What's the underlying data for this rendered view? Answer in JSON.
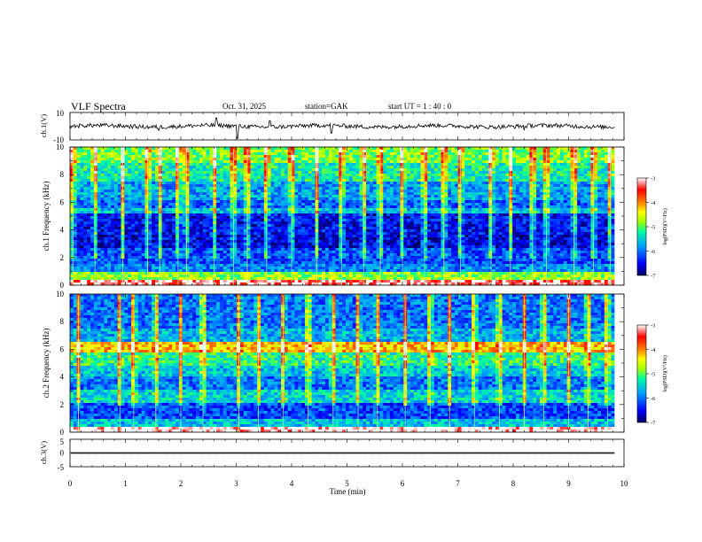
{
  "header": {
    "title": "VLF  Spectra",
    "date": "Oct. 31, 2025",
    "station": "station=GAK",
    "start": "start  UT  =    1  : 40 : 0"
  },
  "chart_data": [
    {
      "type": "line",
      "panel": "ch1-waveform",
      "ylabel": "ch.1(V)",
      "ylim": [
        -10,
        10
      ],
      "yticks": [
        "10",
        "-10"
      ],
      "xlim": [
        0,
        10
      ],
      "baseline": 0,
      "amplitude_typical": 1.5,
      "spikes": [
        {
          "x": 2.64,
          "y": 6
        },
        {
          "x": 3.02,
          "y": -9
        },
        {
          "x": 3.61,
          "y": 4
        },
        {
          "x": 4.72,
          "y": -5
        },
        {
          "x": 1.6,
          "y": -3
        },
        {
          "x": 8.2,
          "y": -3
        }
      ]
    },
    {
      "type": "heatmap",
      "panel": "ch1-spectrogram",
      "ylabel": "ch.1  Frequency  (kHz)",
      "ylim": [
        0,
        10
      ],
      "yticks": [
        "0",
        "2",
        "4",
        "6",
        "8",
        "10"
      ],
      "xlim": [
        0,
        10
      ],
      "data_end_x": 9.83,
      "colorbar": {
        "label": "log(PSD)(V²/Hz)",
        "range": [
          -7,
          -3
        ],
        "ticks": [
          "-3",
          "-4",
          "-5",
          "-6",
          "-7"
        ]
      },
      "bands_khz": [
        {
          "f0": 0.0,
          "f1": 0.3,
          "level": -3.2
        },
        {
          "f0": 0.3,
          "f1": 0.9,
          "level": -4.8
        },
        {
          "f0": 0.9,
          "f1": 1.6,
          "level": -5.9
        },
        {
          "f0": 1.6,
          "f1": 2.6,
          "level": -6.2
        },
        {
          "f0": 2.6,
          "f1": 3.6,
          "level": -6.6
        },
        {
          "f0": 3.6,
          "f1": 5.2,
          "level": -6.5
        },
        {
          "f0": 5.2,
          "f1": 5.6,
          "level": -5.6
        },
        {
          "f0": 5.6,
          "f1": 6.2,
          "level": -6.1
        },
        {
          "f0": 6.2,
          "f1": 7.5,
          "level": -5.8
        },
        {
          "f0": 7.5,
          "f1": 8.8,
          "level": -5.3
        },
        {
          "f0": 8.8,
          "f1": 10.0,
          "level": -4.9
        }
      ],
      "bursts_min": [
        0.05,
        0.45,
        0.95,
        1.4,
        1.62,
        1.95,
        2.1,
        2.6,
        2.95,
        3.2,
        3.55,
        4.0,
        4.45,
        4.9,
        5.3,
        5.6,
        6.0,
        6.4,
        6.75,
        7.05,
        7.6,
        7.95,
        8.35,
        8.6,
        9.1,
        9.45,
        9.75
      ]
    },
    {
      "type": "heatmap",
      "panel": "ch2-spectrogram",
      "ylabel": "ch.2  Frequency  (kHz)",
      "ylim": [
        0,
        10
      ],
      "yticks": [
        "0",
        "2",
        "4",
        "6",
        "8",
        "10"
      ],
      "xlim": [
        0,
        10
      ],
      "data_end_x": 9.83,
      "colorbar": {
        "label": "log(PSD)(V²/Hz)",
        "range": [
          -7,
          -3
        ],
        "ticks": [
          "-3",
          "-4",
          "-5",
          "-6",
          "-7"
        ]
      },
      "bands_khz": [
        {
          "f0": 0.0,
          "f1": 0.3,
          "level": -3.0
        },
        {
          "f0": 0.3,
          "f1": 1.0,
          "level": -5.6
        },
        {
          "f0": 1.0,
          "f1": 2.2,
          "level": -6.2
        },
        {
          "f0": 2.2,
          "f1": 3.0,
          "level": -5.5
        },
        {
          "f0": 3.0,
          "f1": 4.0,
          "level": -6.0
        },
        {
          "f0": 4.0,
          "f1": 4.8,
          "level": -5.6
        },
        {
          "f0": 4.8,
          "f1": 5.8,
          "level": -5.2
        },
        {
          "f0": 5.8,
          "f1": 6.5,
          "level": -4.2
        },
        {
          "f0": 6.5,
          "f1": 7.5,
          "level": -5.7
        },
        {
          "f0": 7.5,
          "f1": 10.0,
          "level": -6.0
        }
      ],
      "bursts_min": [
        0.15,
        0.9,
        1.15,
        1.55,
        2.0,
        2.4,
        3.05,
        3.4,
        3.85,
        4.3,
        4.75,
        5.2,
        5.55,
        6.05,
        6.5,
        6.85,
        7.3,
        7.75,
        8.2,
        8.55,
        9.0,
        9.35,
        9.7
      ]
    },
    {
      "type": "line",
      "panel": "ch3-waveform",
      "ylabel": "ch.3(V)",
      "ylim": [
        -5,
        5
      ],
      "yticks": [
        "5",
        "0",
        "-5"
      ],
      "xlim": [
        0,
        10
      ],
      "baseline": 0,
      "amplitude_typical": 0.2,
      "xlabel": "Time  (min)",
      "xticks": [
        "0",
        "1",
        "2",
        "3",
        "4",
        "5",
        "6",
        "7",
        "8",
        "9",
        "10"
      ]
    }
  ],
  "colors": {
    "scale": [
      "#000060",
      "#0000ff",
      "#00a0ff",
      "#00ffa0",
      "#a0ff00",
      "#ffff00",
      "#ff8000",
      "#ff0000",
      "#ffffff"
    ]
  }
}
